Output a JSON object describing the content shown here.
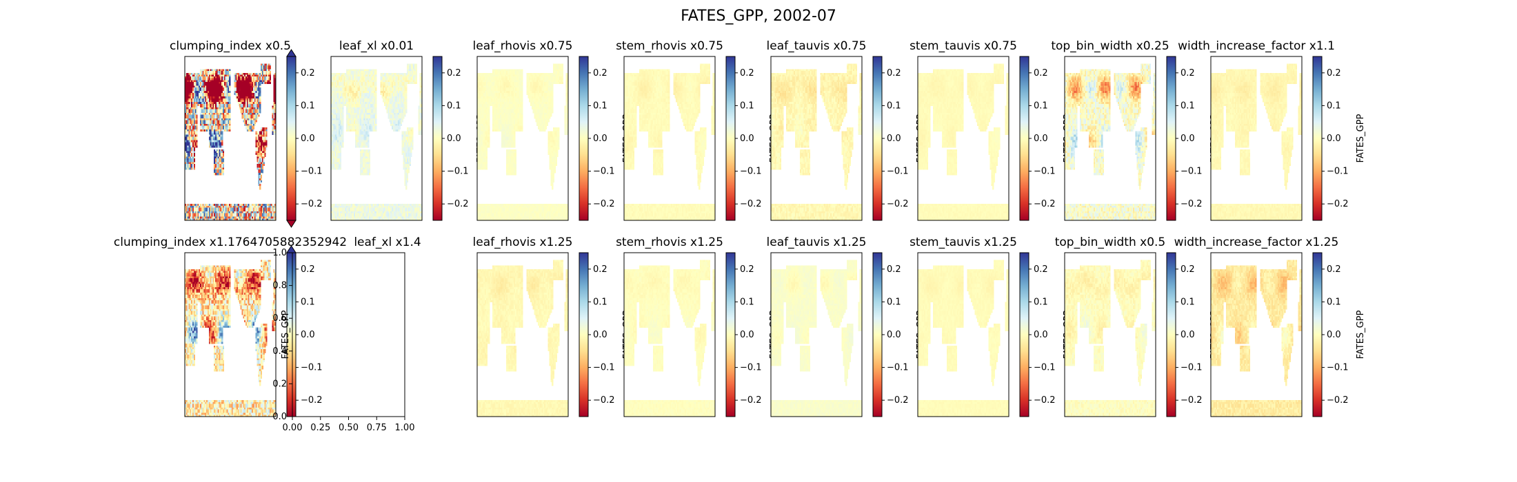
{
  "figure": {
    "title": "FATES_GPP, 2002-07",
    "colormap": "RdYlBu",
    "colormap_stops": [
      "#a50026",
      "#d73027",
      "#f46d43",
      "#fdae61",
      "#fee090",
      "#ffffbf",
      "#e0f3f8",
      "#abd9e9",
      "#74add1",
      "#4575b4",
      "#313695"
    ]
  },
  "chart_data": [
    {
      "type": "heatmap",
      "title": "clumping_index x0.5",
      "colorbar_label": "",
      "colorbar_ticks": [
        "0.2",
        "0.1",
        "0.0",
        "−0.1",
        "−0.2"
      ],
      "vlim": [
        -0.25,
        0.25
      ],
      "extend": "both",
      "intensity": 1.0,
      "bias": 0.0
    },
    {
      "type": "heatmap",
      "title": "leaf_xl x0.01",
      "colorbar_label": "FATES_GPP",
      "colorbar_ticks": [
        "0.2",
        "0.1",
        "0.0",
        "−0.1",
        "−0.2"
      ],
      "vlim": [
        -0.25,
        0.25
      ],
      "extend": "neither",
      "intensity": 0.12,
      "bias": 0.03
    },
    {
      "type": "heatmap",
      "title": "leaf_rhovis x0.75",
      "colorbar_label": "FATES_GPP",
      "colorbar_ticks": [
        "0.2",
        "0.1",
        "0.0",
        "−0.1",
        "−0.2"
      ],
      "vlim": [
        -0.25,
        0.25
      ],
      "extend": "neither",
      "intensity": 0.03,
      "bias": 0.005
    },
    {
      "type": "heatmap",
      "title": "stem_rhovis x0.75",
      "colorbar_label": "FATES_GPP",
      "colorbar_ticks": [
        "0.2",
        "0.1",
        "0.0",
        "−0.1",
        "−0.2"
      ],
      "vlim": [
        -0.25,
        0.25
      ],
      "extend": "neither",
      "intensity": 0.03,
      "bias": -0.005
    },
    {
      "type": "heatmap",
      "title": "leaf_tauvis x0.75",
      "colorbar_label": "FATES_GPP",
      "colorbar_ticks": [
        "0.2",
        "0.1",
        "0.0",
        "−0.1",
        "−0.2"
      ],
      "vlim": [
        -0.25,
        0.25
      ],
      "extend": "neither",
      "intensity": 0.07,
      "bias": -0.01
    },
    {
      "type": "heatmap",
      "title": "stem_tauvis x0.75",
      "colorbar_label": "FATES_GPP",
      "colorbar_ticks": [
        "0.2",
        "0.1",
        "0.0",
        "−0.1",
        "−0.2"
      ],
      "vlim": [
        -0.25,
        0.25
      ],
      "extend": "neither",
      "intensity": 0.02,
      "bias": -0.005
    },
    {
      "type": "heatmap",
      "title": "top_bin_width x0.25",
      "colorbar_label": "FATES_GPP",
      "colorbar_ticks": [
        "0.2",
        "0.1",
        "0.0",
        "−0.1",
        "−0.2"
      ],
      "vlim": [
        -0.25,
        0.25
      ],
      "extend": "neither",
      "intensity": 0.2,
      "bias": 0.01
    },
    {
      "type": "heatmap",
      "title": "width_increase_factor x1.1",
      "colorbar_label": "FATES_GPP",
      "colorbar_ticks": [
        "0.2",
        "0.1",
        "0.0",
        "−0.1",
        "−0.2"
      ],
      "vlim": [
        -0.25,
        0.25
      ],
      "extend": "neither",
      "intensity": 0.035,
      "bias": -0.01
    },
    {
      "type": "heatmap",
      "title": "clumping_index x1.1764705882352942",
      "colorbar_label": "",
      "colorbar_ticks": [
        "0.2",
        "0.1",
        "0.0",
        "−0.1",
        "−0.2"
      ],
      "vlim": [
        -0.25,
        0.25
      ],
      "extend": "max",
      "intensity": 0.45,
      "bias": -0.02
    },
    {
      "type": "empty",
      "title": "leaf_xl x1.4",
      "colorbar_label": "FATES_GPP",
      "xticks": [
        "0.00",
        "0.25",
        "0.50",
        "0.75",
        "1.00"
      ],
      "yticks": [
        "0.0",
        "0.2",
        "0.4",
        "0.6",
        "0.8",
        "1.0"
      ],
      "xlim": [
        0,
        1
      ],
      "ylim": [
        0,
        1
      ]
    },
    {
      "type": "heatmap",
      "title": "leaf_rhovis x1.25",
      "colorbar_label": "FATES_GPP",
      "colorbar_ticks": [
        "0.2",
        "0.1",
        "0.0",
        "−0.1",
        "−0.2"
      ],
      "vlim": [
        -0.25,
        0.25
      ],
      "extend": "neither",
      "intensity": 0.04,
      "bias": -0.01
    },
    {
      "type": "heatmap",
      "title": "stem_rhovis x1.25",
      "colorbar_label": "FATES_GPP",
      "colorbar_ticks": [
        "0.2",
        "0.1",
        "0.0",
        "−0.1",
        "−0.2"
      ],
      "vlim": [
        -0.25,
        0.25
      ],
      "extend": "neither",
      "intensity": 0.03,
      "bias": 0.0
    },
    {
      "type": "heatmap",
      "title": "leaf_tauvis x1.25",
      "colorbar_label": "FATES_GPP",
      "colorbar_ticks": [
        "0.2",
        "0.1",
        "0.0",
        "−0.1",
        "−0.2"
      ],
      "vlim": [
        -0.25,
        0.25
      ],
      "extend": "neither",
      "intensity": 0.03,
      "bias": 0.01
    },
    {
      "type": "heatmap",
      "title": "stem_tauvis x1.25",
      "colorbar_label": "FATES_GPP",
      "colorbar_ticks": [
        "0.2",
        "0.1",
        "0.0",
        "−0.1",
        "−0.2"
      ],
      "vlim": [
        -0.25,
        0.25
      ],
      "extend": "neither",
      "intensity": 0.02,
      "bias": -0.005
    },
    {
      "type": "heatmap",
      "title": "top_bin_width x0.5",
      "colorbar_label": "FATES_GPP",
      "colorbar_ticks": [
        "0.2",
        "0.1",
        "0.0",
        "−0.1",
        "−0.2"
      ],
      "vlim": [
        -0.25,
        0.25
      ],
      "extend": "neither",
      "intensity": 0.07,
      "bias": 0.0
    },
    {
      "type": "heatmap",
      "title": "width_increase_factor x1.25",
      "colorbar_label": "FATES_GPP",
      "colorbar_ticks": [
        "0.2",
        "0.1",
        "0.0",
        "−0.1",
        "−0.2"
      ],
      "vlim": [
        -0.25,
        0.25
      ],
      "extend": "neither",
      "intensity": 0.09,
      "bias": -0.03
    }
  ]
}
